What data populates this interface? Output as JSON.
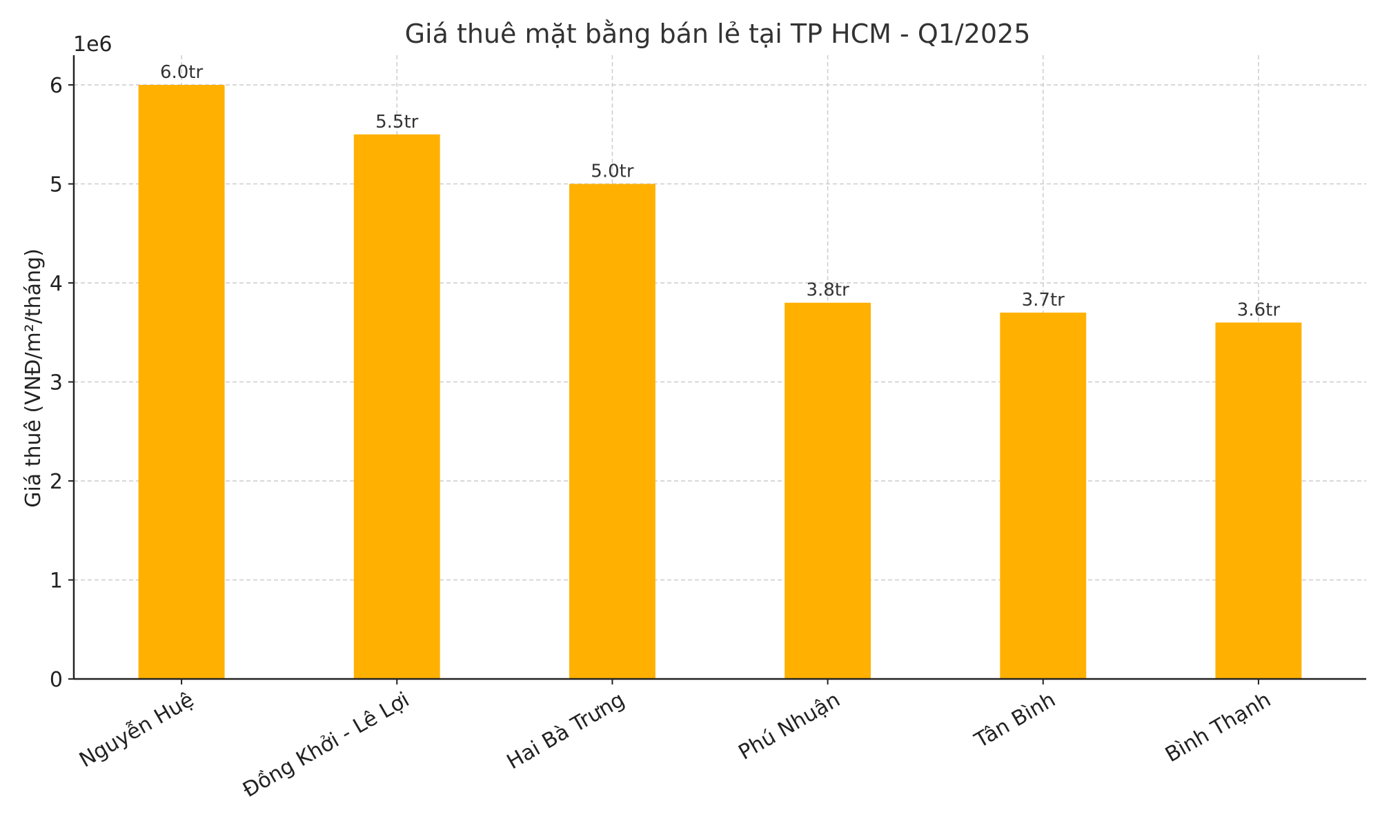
{
  "chart_data": {
    "type": "bar",
    "title": "Giá thuê mặt bằng bán lẻ tại TP HCM - Q1/2025",
    "xlabel": "",
    "ylabel": "Giá thuê (VNĐ/m²/tháng)",
    "y_offset_label": "1e6",
    "categories": [
      "Nguyễn Huệ",
      "Đồng Khởi - Lê Lợi",
      "Hai Bà Trưng",
      "Phú Nhuận",
      "Tân Bình",
      "Bình Thạnh"
    ],
    "values": [
      6000000,
      5500000,
      5000000,
      3800000,
      3700000,
      3600000
    ],
    "data_labels": [
      "6.0tr",
      "5.5tr",
      "5.0tr",
      "3.8tr",
      "3.7tr",
      "3.6tr"
    ],
    "y_ticks": [
      0,
      1000000,
      2000000,
      3000000,
      4000000,
      5000000,
      6000000
    ],
    "y_tick_labels": [
      "0",
      "1",
      "2",
      "3",
      "4",
      "5",
      "6"
    ],
    "ylim": [
      0,
      6300000
    ],
    "grid": true,
    "bar_color": "#FFB000"
  }
}
